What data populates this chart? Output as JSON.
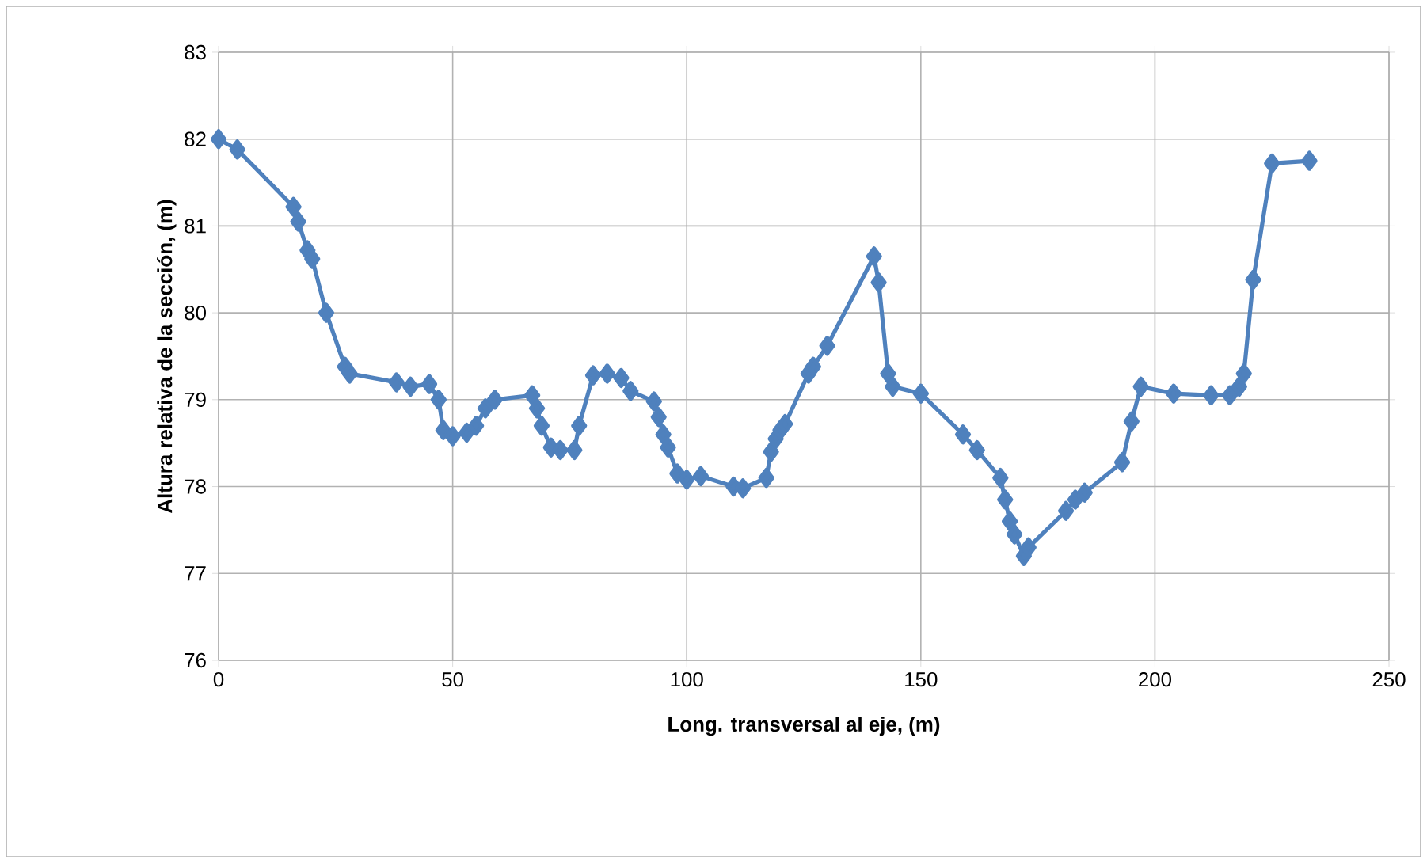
{
  "chart_data": {
    "type": "line",
    "xlabel": "Long. transversal al eje, (m)",
    "ylabel": "Altura relativa de la sección, (m)",
    "xlim": [
      0,
      250
    ],
    "xticks": [
      0,
      50,
      100,
      150,
      200,
      250
    ],
    "ylim": [
      76,
      83
    ],
    "yticks": [
      76,
      77,
      78,
      79,
      80,
      81,
      82,
      83
    ],
    "grid": true,
    "marker": "diamond",
    "line_style": "solid",
    "series": [
      {
        "color": "#4f81bd",
        "x": [
          0,
          4,
          16,
          17,
          19,
          20,
          23,
          27,
          28,
          38,
          41,
          45,
          47,
          48,
          50,
          53,
          55,
          57,
          59,
          67,
          68,
          69,
          71,
          73,
          76,
          77,
          80,
          83,
          86,
          88,
          93,
          94,
          95,
          96,
          98,
          100,
          103,
          110,
          112,
          117,
          118,
          119,
          120,
          121,
          126,
          127,
          130,
          140,
          141,
          143,
          144,
          150,
          159,
          162,
          167,
          168,
          169,
          170,
          172,
          173,
          181,
          183,
          185,
          193,
          195,
          197,
          204,
          212,
          216,
          218,
          219,
          221,
          225,
          233
        ],
        "values": [
          82.0,
          81.88,
          81.22,
          81.05,
          80.72,
          80.62,
          80.0,
          79.38,
          79.3,
          79.2,
          79.15,
          79.18,
          79.0,
          78.65,
          78.58,
          78.62,
          78.7,
          78.9,
          79.0,
          79.05,
          78.9,
          78.7,
          78.45,
          78.42,
          78.42,
          78.7,
          79.28,
          79.3,
          79.25,
          79.1,
          78.98,
          78.8,
          78.6,
          78.45,
          78.15,
          78.08,
          78.12,
          78.0,
          77.98,
          78.1,
          78.4,
          78.55,
          78.65,
          78.72,
          79.3,
          79.38,
          79.62,
          80.65,
          80.35,
          79.3,
          79.15,
          79.07,
          78.6,
          78.42,
          78.1,
          77.85,
          77.6,
          77.45,
          77.2,
          77.3,
          77.72,
          77.85,
          77.93,
          78.28,
          78.75,
          79.15,
          79.07,
          79.05,
          79.05,
          79.15,
          79.3,
          80.38,
          81.72,
          81.75
        ]
      }
    ]
  }
}
